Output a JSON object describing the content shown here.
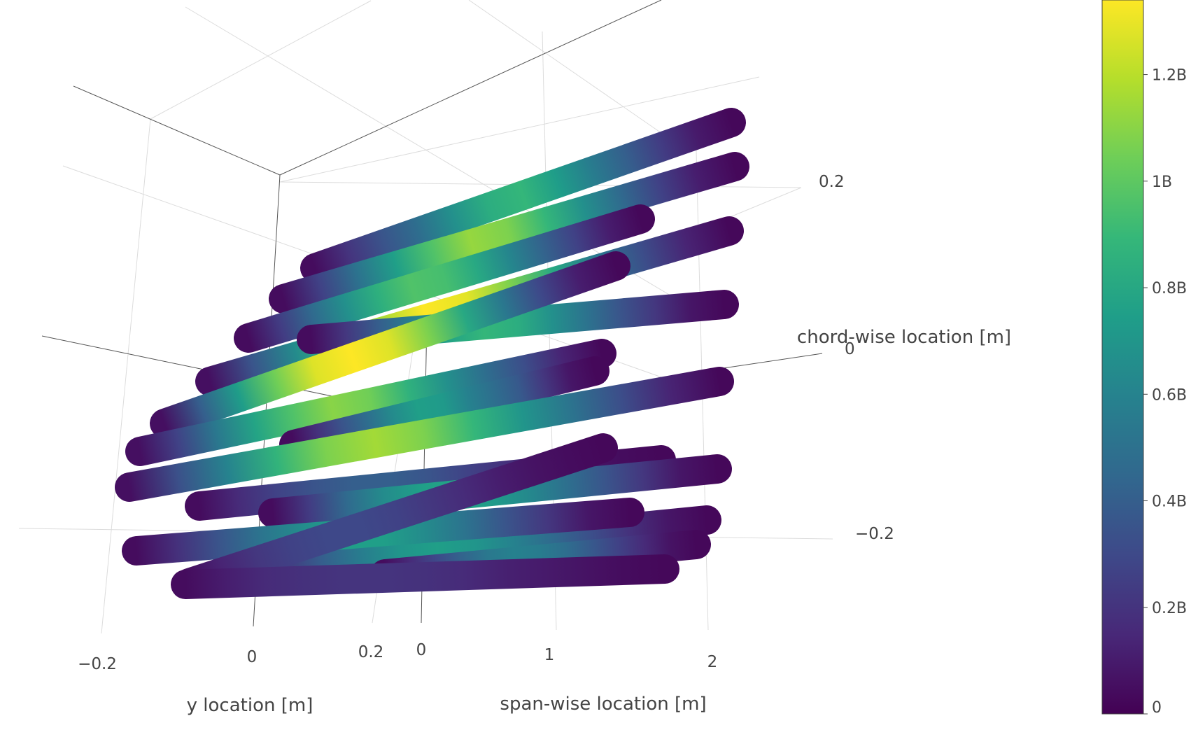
{
  "chart_data": {
    "type": "scatter3d-lines",
    "axes": {
      "x": {
        "title": "span-wise location [m]",
        "tick_labels": [
          "0",
          "1",
          "2"
        ]
      },
      "y": {
        "title": "y location [m]",
        "tick_labels": [
          "−0.2",
          "0",
          "0.2"
        ]
      },
      "z": {
        "title": "chord-wise location [m]",
        "tick_labels": [
          "−0.2",
          "0",
          "0.2"
        ]
      }
    },
    "colorbar": {
      "title": "",
      "range": [
        0,
        1340000000
      ],
      "tick_labels": [
        "0",
        "0.2B",
        "0.4B",
        "0.6B",
        "0.8B",
        "1B",
        "1.2B"
      ],
      "tick_values": [
        0,
        200000000,
        400000000,
        600000000,
        800000000,
        1000000000,
        1200000000
      ],
      "colorscale": "Viridis",
      "colors": [
        "#440154",
        "#482878",
        "#3e4989",
        "#31688e",
        "#26828e",
        "#1f9e89",
        "#35b779",
        "#6ece58",
        "#b5de2b",
        "#fde725"
      ]
    },
    "series": [
      {
        "values": [
          0.03,
          0.15,
          0.26,
          0.36,
          0.5,
          0.62,
          0.66,
          0.55,
          0.42,
          0.3,
          0.18,
          0.07,
          0.02
        ]
      },
      {
        "values": [
          0.03,
          0.2,
          0.38,
          0.56,
          0.72,
          0.84,
          0.8,
          0.66,
          0.5,
          0.34,
          0.2,
          0.08,
          0.02
        ]
      },
      {
        "values": [
          0.03,
          0.18,
          0.34,
          0.5,
          0.63,
          0.72,
          0.7,
          0.6,
          0.46,
          0.32,
          0.2,
          0.08,
          0.02
        ]
      },
      {
        "values": [
          0.04,
          0.26,
          0.48,
          0.68,
          0.86,
          1.0,
          0.96,
          0.8,
          0.6,
          0.4,
          0.24,
          0.1,
          0.02
        ]
      },
      {
        "values": [
          0.03,
          0.16,
          0.3,
          0.44,
          0.58,
          0.66,
          0.62,
          0.5,
          0.38,
          0.26,
          0.16,
          0.06,
          0.02
        ]
      },
      {
        "values": [
          0.04,
          0.3,
          0.55,
          0.78,
          0.95,
          1.0,
          0.95,
          0.8,
          0.6,
          0.4,
          0.22,
          0.08,
          0.02
        ]
      },
      {
        "values": [
          0.04,
          0.2,
          0.4,
          0.58,
          0.72,
          0.82,
          0.78,
          0.64,
          0.5,
          0.36,
          0.24,
          0.1,
          0.02
        ]
      },
      {
        "values": [
          0.03,
          0.14,
          0.26,
          0.36,
          0.48,
          0.56,
          0.54,
          0.44,
          0.36,
          0.28,
          0.16,
          0.06,
          0.02
        ]
      },
      {
        "values": [
          0.04,
          0.25,
          0.45,
          0.65,
          0.8,
          0.86,
          0.8,
          0.66,
          0.52,
          0.38,
          0.24,
          0.1,
          0.02
        ]
      },
      {
        "values": [
          0.03,
          0.12,
          0.2,
          0.26,
          0.3,
          0.3,
          0.26,
          0.2,
          0.14,
          0.1,
          0.06,
          0.03,
          0.02
        ]
      },
      {
        "values": [
          0.03,
          0.18,
          0.34,
          0.48,
          0.56,
          0.58,
          0.54,
          0.46,
          0.36,
          0.26,
          0.16,
          0.06,
          0.02
        ]
      },
      {
        "values": [
          0.03,
          0.16,
          0.3,
          0.42,
          0.52,
          0.56,
          0.52,
          0.44,
          0.34,
          0.24,
          0.14,
          0.06,
          0.02
        ]
      },
      {
        "values": [
          0.03,
          0.14,
          0.26,
          0.38,
          0.48,
          0.56,
          0.56,
          0.48,
          0.38,
          0.26,
          0.16,
          0.06,
          0.02
        ]
      },
      {
        "values": [
          0.03,
          0.1,
          0.16,
          0.2,
          0.22,
          0.22,
          0.2,
          0.16,
          0.12,
          0.08,
          0.05,
          0.03,
          0.02
        ]
      },
      {
        "values": [
          0.03,
          0.12,
          0.22,
          0.32,
          0.4,
          0.44,
          0.42,
          0.36,
          0.28,
          0.2,
          0.12,
          0.05,
          0.02
        ]
      },
      {
        "values": [
          0.03,
          0.08,
          0.12,
          0.14,
          0.15,
          0.15,
          0.14,
          0.12,
          0.09,
          0.07,
          0.05,
          0.03,
          0.02
        ]
      }
    ]
  }
}
